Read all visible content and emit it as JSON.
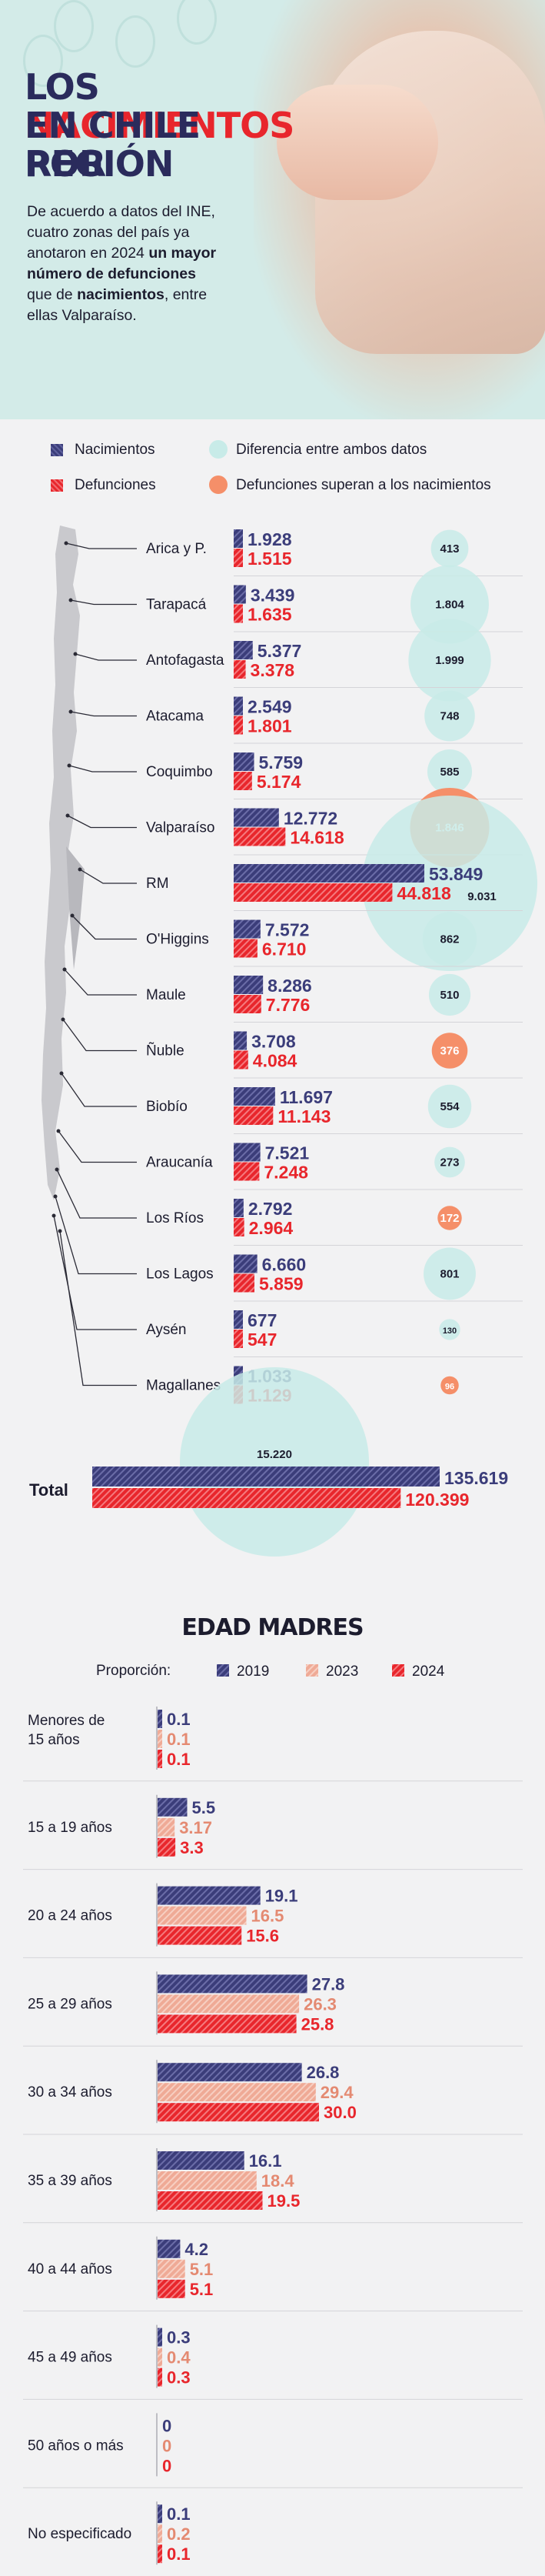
{
  "header": {
    "title_line1_a": "LOS ",
    "title_line1_b": "NACIMIENTOS",
    "title_line2": "EN CHILE POR",
    "title_line3": "REGIÓN",
    "intro_1": "De acuerdo a datos del INE, cuatro zonas del país ya anotaron en 2024 ",
    "intro_2": "un mayor número de defunciones",
    "intro_3": " que de ",
    "intro_4": "nacimientos",
    "intro_5": ", entre ellas Valparaíso."
  },
  "legend": {
    "births": "Nacimientos",
    "deaths": "Defunciones",
    "difference": "Diferencia entre ambos datos",
    "deaths_exceed": "Defunciones superan a los nacimientos"
  },
  "colors": {
    "births": "#3b3d7a",
    "deaths": "#e8262c",
    "difference": "#c8ebe8",
    "deaths_exceed": "#f58f69",
    "y2019": "#3b3d7a",
    "y2023": "#efaa96",
    "y2024": "#e8262c"
  },
  "chart_data": [
    {
      "type": "bar",
      "categories": [
        "Arica y P.",
        "Tarapacá",
        "Antofagasta",
        "Atacama",
        "Coquimbo",
        "Valparaíso",
        "RM",
        "O'Higgins",
        "Maule",
        "Ñuble",
        "Biobío",
        "Araucanía",
        "Los Ríos",
        "Los Lagos",
        "Aysén",
        "Magallanes"
      ],
      "series": [
        {
          "name": "Nacimientos",
          "values": [
            1928,
            3439,
            5377,
            2549,
            5759,
            12772,
            53849,
            7572,
            8286,
            3708,
            11697,
            7521,
            2792,
            6660,
            677,
            1033
          ],
          "labels": [
            "1.928",
            "3.439",
            "5.377",
            "2.549",
            "5.759",
            "12.772",
            "53.849",
            "7.572",
            "8.286",
            "3.708",
            "11.697",
            "7.521",
            "2.792",
            "6.660",
            "677",
            "1.033"
          ]
        },
        {
          "name": "Defunciones",
          "values": [
            1515,
            1635,
            3378,
            1801,
            5174,
            14618,
            44818,
            6710,
            7776,
            4084,
            11143,
            7248,
            2964,
            5859,
            547,
            1129
          ],
          "labels": [
            "1.515",
            "1.635",
            "3.378",
            "1.801",
            "5.174",
            "14.618",
            "44.818",
            "6.710",
            "7.776",
            "4.084",
            "11.143",
            "7.248",
            "2.964",
            "5.859",
            "547",
            "1.129"
          ]
        }
      ],
      "difference": {
        "values": [
          413,
          1804,
          1999,
          748,
          585,
          1846,
          9031,
          862,
          510,
          376,
          554,
          273,
          172,
          801,
          130,
          96
        ],
        "labels": [
          "413",
          "1.804",
          "1.999",
          "748",
          "585",
          "1.846",
          "9.031",
          "862",
          "510",
          "376",
          "554",
          "273",
          "172",
          "801",
          "130",
          "96"
        ],
        "deaths_exceed": [
          false,
          false,
          false,
          false,
          false,
          true,
          false,
          false,
          false,
          true,
          false,
          false,
          true,
          false,
          false,
          true
        ]
      },
      "total": {
        "label": "Total",
        "births": 135619,
        "deaths": 120399,
        "difference": 15220,
        "births_label": "135.619",
        "deaths_label": "120.399",
        "difference_label": "15.220"
      }
    },
    {
      "type": "bar",
      "title": "EDAD MADRES",
      "legend_label": "Proporción:",
      "categories": [
        "Menores de 15 años",
        "15 a 19 años",
        "20 a 24 años",
        "25 a 29 años",
        "30 a 34 años",
        "35 a 39 años",
        "40 a 44 años",
        "45 a 49 años",
        "50 años o más",
        "No especificado"
      ],
      "series": [
        {
          "name": "2019",
          "values": [
            0.1,
            5.5,
            19.1,
            27.8,
            26.8,
            16.1,
            4.2,
            0.3,
            0,
            0.1
          ],
          "labels": [
            "0.1",
            "5.5",
            "19.1",
            "27.8",
            "26.8",
            "16.1",
            "4.2",
            "0.3",
            "0",
            "0.1"
          ]
        },
        {
          "name": "2023",
          "values": [
            0.1,
            3.17,
            16.5,
            26.3,
            29.4,
            18.4,
            5.1,
            0.4,
            0,
            0.2
          ],
          "labels": [
            "0.1",
            "3.17",
            "16.5",
            "26.3",
            "29.4",
            "18.4",
            "5.1",
            "0.4",
            "0",
            "0.2"
          ]
        },
        {
          "name": "2024",
          "values": [
            0.1,
            3.3,
            15.6,
            25.8,
            30.0,
            19.5,
            5.1,
            0.3,
            0,
            0.1
          ],
          "labels": [
            "0.1",
            "3.3",
            "15.6",
            "25.8",
            "30.0",
            "19.5",
            "5.1",
            "0.3",
            "0",
            "0.1"
          ]
        }
      ]
    }
  ]
}
